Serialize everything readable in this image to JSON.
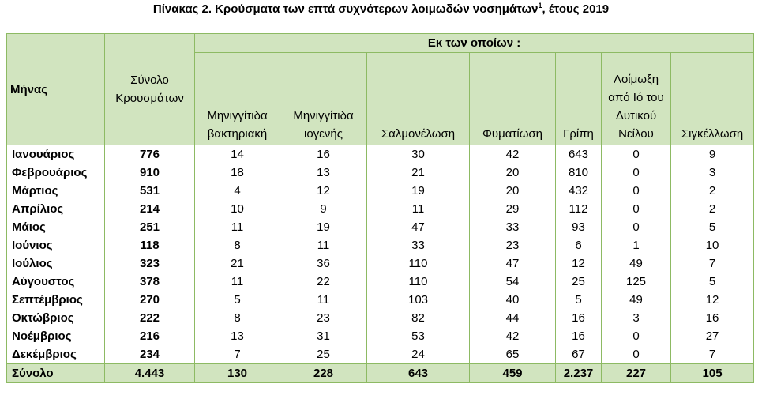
{
  "title": {
    "text": "Πίνακας 2. Κρούσματα των επτά συχνότερων λοιμωδών νοσημάτων",
    "footnote_mark": "1",
    "suffix": ", έτους 2019"
  },
  "table": {
    "header": {
      "month": "Μήνας",
      "total": "Σύνολο Κρουσμάτων",
      "of_which": "Εκ των οποίων :",
      "diseases": [
        "Μηνιγγίτιδα βακτηριακή",
        "Μηνιγγίτιδα ιογενής",
        "Σαλμονέλωση",
        "Φυματίωση",
        "Γρίπη",
        "Λοίμωξη από Ιό του Δυτικού Νείλου",
        "Σιγκέλλωση"
      ]
    },
    "rows": [
      [
        "Ιανουάριος",
        "776",
        "14",
        "16",
        "30",
        "42",
        "643",
        "0",
        "9"
      ],
      [
        "Φεβρουάριος",
        "910",
        "18",
        "13",
        "21",
        "20",
        "810",
        "0",
        "3"
      ],
      [
        "Μάρτιος",
        "531",
        "4",
        "12",
        "19",
        "20",
        "432",
        "0",
        "2"
      ],
      [
        "Απρίλιος",
        "214",
        "10",
        "9",
        "11",
        "29",
        "112",
        "0",
        "2"
      ],
      [
        "Μάιος",
        "251",
        "11",
        "19",
        "47",
        "33",
        "93",
        "0",
        "5"
      ],
      [
        "Ιούνιος",
        "118",
        "8",
        "11",
        "33",
        "23",
        "6",
        "1",
        "10"
      ],
      [
        "Ιούλιος",
        "323",
        "21",
        "36",
        "110",
        "47",
        "12",
        "49",
        "7"
      ],
      [
        "Αύγουστος",
        "378",
        "11",
        "22",
        "110",
        "54",
        "25",
        "125",
        "5"
      ],
      [
        "Σεπτέμβριος",
        "270",
        "5",
        "11",
        "103",
        "40",
        "5",
        "49",
        "12"
      ],
      [
        "Οκτώβριος",
        "222",
        "8",
        "23",
        "82",
        "44",
        "16",
        "3",
        "16"
      ],
      [
        "Νοέμβριος",
        "216",
        "13",
        "31",
        "53",
        "42",
        "16",
        "0",
        "27"
      ],
      [
        "Δεκέμβριος",
        "234",
        "7",
        "25",
        "24",
        "65",
        "67",
        "0",
        "7"
      ]
    ],
    "totals": [
      "Σύνολο",
      "4.443",
      "130",
      "228",
      "643",
      "459",
      "2.237",
      "227",
      "105"
    ]
  },
  "colors": {
    "header_fill": "#d1e4bf",
    "border": "#8dba63"
  }
}
